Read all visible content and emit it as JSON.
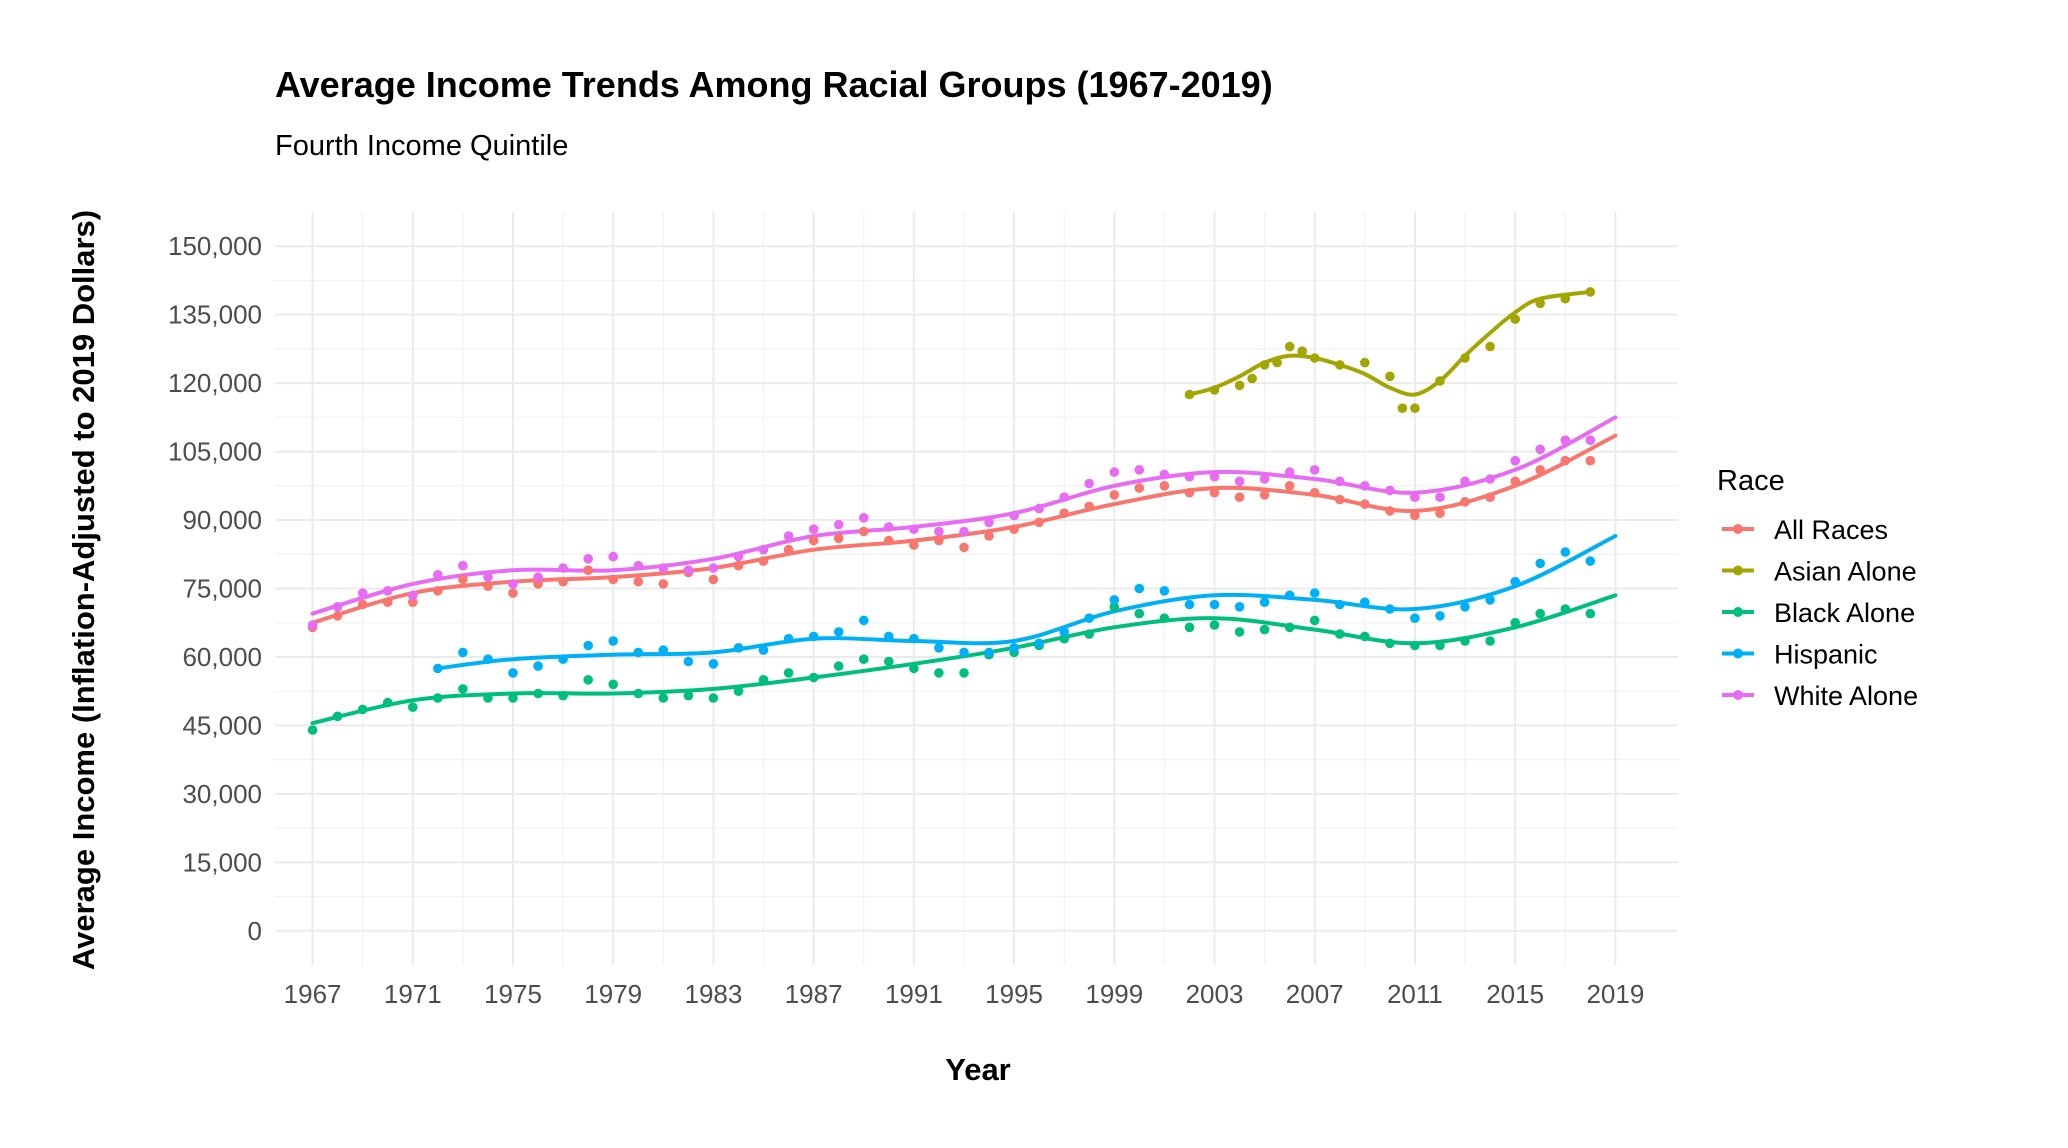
{
  "chart_data": {
    "type": "scatter",
    "title": "Average Income Trends Among Racial Groups (1967-2019)",
    "subtitle": "Fourth Income Quintile",
    "xlabel": "Year",
    "ylabel": "Average Income (Inflation-Adjusted to 2019 Dollars)",
    "xlim": [
      1965.5,
      2021.5
    ],
    "ylim": [
      -7500,
      157500
    ],
    "x_ticks": [
      1967,
      1971,
      1975,
      1979,
      1983,
      1987,
      1991,
      1995,
      1999,
      2003,
      2007,
      2011,
      2015,
      2019
    ],
    "x_tick_labels": [
      "1967",
      "1971",
      "1975",
      "1979",
      "1983",
      "1987",
      "1991",
      "1995",
      "1999",
      "2003",
      "2007",
      "2011",
      "2015",
      "2019"
    ],
    "y_ticks": [
      0,
      15000,
      30000,
      45000,
      60000,
      75000,
      90000,
      105000,
      120000,
      135000,
      150000
    ],
    "y_tick_labels": [
      "0",
      "15,000",
      "30,000",
      "45,000",
      "60,000",
      "75,000",
      "90,000",
      "105,000",
      "120,000",
      "135,000",
      "150,000"
    ],
    "grid": true,
    "smooth_lines": true,
    "legend": {
      "title": "Race",
      "position": "right"
    },
    "series": [
      {
        "name": "All Races",
        "color": "#F8766D",
        "points": [
          [
            1967,
            66500
          ],
          [
            1968,
            69000
          ],
          [
            1969,
            71500
          ],
          [
            1970,
            72000
          ],
          [
            1971,
            72000
          ],
          [
            1972,
            74500
          ],
          [
            1973,
            77000
          ],
          [
            1974,
            75500
          ],
          [
            1975,
            74000
          ],
          [
            1976,
            76000
          ],
          [
            1977,
            76500
          ],
          [
            1978,
            79000
          ],
          [
            1979,
            77000
          ],
          [
            1980,
            76500
          ],
          [
            1981,
            76000
          ],
          [
            1982,
            78500
          ],
          [
            1983,
            77000
          ],
          [
            1984,
            80000
          ],
          [
            1985,
            81000
          ],
          [
            1986,
            83500
          ],
          [
            1987,
            85500
          ],
          [
            1988,
            86000
          ],
          [
            1989,
            87500
          ],
          [
            1990,
            85500
          ],
          [
            1991,
            84500
          ],
          [
            1992,
            85500
          ],
          [
            1993,
            84000
          ],
          [
            1994,
            86500
          ],
          [
            1995,
            88000
          ],
          [
            1996,
            89500
          ],
          [
            1997,
            91500
          ],
          [
            1998,
            93000
          ],
          [
            1999,
            95500
          ],
          [
            2000,
            97000
          ],
          [
            2001,
            97500
          ],
          [
            2002,
            96000
          ],
          [
            2003,
            96000
          ],
          [
            2004,
            95000
          ],
          [
            2005,
            95500
          ],
          [
            2006,
            97500
          ],
          [
            2007,
            96000
          ],
          [
            2008,
            94500
          ],
          [
            2009,
            93500
          ],
          [
            2010,
            92000
          ],
          [
            2011,
            91000
          ],
          [
            2012,
            91500
          ],
          [
            2013,
            94000
          ],
          [
            2014,
            95000
          ],
          [
            2015,
            98500
          ],
          [
            2016,
            101000
          ],
          [
            2017,
            103000
          ],
          [
            2018,
            103000
          ]
        ],
        "curve": [
          [
            1967,
            67500
          ],
          [
            1971,
            74000
          ],
          [
            1975,
            76500
          ],
          [
            1979,
            77500
          ],
          [
            1983,
            79500
          ],
          [
            1987,
            83500
          ],
          [
            1991,
            85500
          ],
          [
            1995,
            88500
          ],
          [
            1999,
            93500
          ],
          [
            2003,
            97000
          ],
          [
            2007,
            95500
          ],
          [
            2011,
            92000
          ],
          [
            2015,
            97500
          ],
          [
            2019,
            108500
          ]
        ]
      },
      {
        "name": "Asian Alone",
        "color": "#A3A500",
        "points": [
          [
            2002,
            117500
          ],
          [
            2003,
            118500
          ],
          [
            2004,
            119500
          ],
          [
            2004.5,
            121000
          ],
          [
            2005,
            124000
          ],
          [
            2005.5,
            124500
          ],
          [
            2006,
            128000
          ],
          [
            2006.5,
            127000
          ],
          [
            2007,
            125500
          ],
          [
            2008,
            124000
          ],
          [
            2009,
            124500
          ],
          [
            2010,
            121500
          ],
          [
            2010.5,
            114500
          ],
          [
            2011,
            114500
          ],
          [
            2012,
            120500
          ],
          [
            2013,
            125500
          ],
          [
            2014,
            128000
          ],
          [
            2015,
            134000
          ],
          [
            2016,
            137500
          ],
          [
            2017,
            138500
          ],
          [
            2018,
            140000
          ]
        ],
        "curve": [
          [
            2002,
            117500
          ],
          [
            2003,
            119000
          ],
          [
            2004,
            121500
          ],
          [
            2005,
            124500
          ],
          [
            2006,
            126000
          ],
          [
            2007,
            125500
          ],
          [
            2008,
            124000
          ],
          [
            2009,
            122000
          ],
          [
            2010,
            119000
          ],
          [
            2011,
            117500
          ],
          [
            2012,
            120500
          ],
          [
            2013,
            126000
          ],
          [
            2014,
            131000
          ],
          [
            2015,
            135500
          ],
          [
            2016,
            138500
          ],
          [
            2018,
            140000
          ]
        ]
      },
      {
        "name": "Black Alone",
        "color": "#00BF7D",
        "points": [
          [
            1967,
            44000
          ],
          [
            1968,
            47000
          ],
          [
            1969,
            48500
          ],
          [
            1970,
            50000
          ],
          [
            1971,
            49000
          ],
          [
            1972,
            51000
          ],
          [
            1973,
            53000
          ],
          [
            1974,
            51000
          ],
          [
            1975,
            51000
          ],
          [
            1976,
            52000
          ],
          [
            1977,
            51500
          ],
          [
            1978,
            55000
          ],
          [
            1979,
            54000
          ],
          [
            1980,
            52000
          ],
          [
            1981,
            51000
          ],
          [
            1982,
            51500
          ],
          [
            1983,
            51000
          ],
          [
            1984,
            52500
          ],
          [
            1985,
            55000
          ],
          [
            1986,
            56500
          ],
          [
            1987,
            55500
          ],
          [
            1988,
            58000
          ],
          [
            1989,
            59500
          ],
          [
            1990,
            59000
          ],
          [
            1991,
            57500
          ],
          [
            1992,
            56500
          ],
          [
            1993,
            56500
          ],
          [
            1994,
            60500
          ],
          [
            1995,
            61000
          ],
          [
            1996,
            62500
          ],
          [
            1997,
            64000
          ],
          [
            1998,
            65000
          ],
          [
            1999,
            71000
          ],
          [
            2000,
            69500
          ],
          [
            2001,
            68500
          ],
          [
            2002,
            66500
          ],
          [
            2003,
            67000
          ],
          [
            2004,
            65500
          ],
          [
            2005,
            66000
          ],
          [
            2006,
            66500
          ],
          [
            2007,
            68000
          ],
          [
            2008,
            65000
          ],
          [
            2009,
            64500
          ],
          [
            2010,
            63000
          ],
          [
            2011,
            62500
          ],
          [
            2012,
            62500
          ],
          [
            2013,
            63500
          ],
          [
            2014,
            63500
          ],
          [
            2015,
            67500
          ],
          [
            2016,
            69500
          ],
          [
            2017,
            70500
          ],
          [
            2018,
            69500
          ]
        ],
        "curve": [
          [
            1967,
            45500
          ],
          [
            1971,
            50500
          ],
          [
            1975,
            52000
          ],
          [
            1979,
            52000
          ],
          [
            1983,
            53000
          ],
          [
            1987,
            55500
          ],
          [
            1991,
            58500
          ],
          [
            1995,
            62000
          ],
          [
            1999,
            66500
          ],
          [
            2003,
            68500
          ],
          [
            2007,
            66000
          ],
          [
            2011,
            63000
          ],
          [
            2015,
            66500
          ],
          [
            2019,
            73500
          ]
        ]
      },
      {
        "name": "Hispanic",
        "color": "#00B0F6",
        "points": [
          [
            1972,
            57500
          ],
          [
            1973,
            61000
          ],
          [
            1974,
            59500
          ],
          [
            1975,
            56500
          ],
          [
            1976,
            58000
          ],
          [
            1977,
            59500
          ],
          [
            1978,
            62500
          ],
          [
            1979,
            63500
          ],
          [
            1980,
            61000
          ],
          [
            1981,
            61500
          ],
          [
            1982,
            59000
          ],
          [
            1983,
            58500
          ],
          [
            1984,
            62000
          ],
          [
            1985,
            61500
          ],
          [
            1986,
            64000
          ],
          [
            1987,
            64500
          ],
          [
            1988,
            65500
          ],
          [
            1989,
            68000
          ],
          [
            1990,
            64500
          ],
          [
            1991,
            64000
          ],
          [
            1992,
            62000
          ],
          [
            1993,
            61000
          ],
          [
            1994,
            61000
          ],
          [
            1995,
            62000
          ],
          [
            1996,
            63000
          ],
          [
            1997,
            65500
          ],
          [
            1998,
            68500
          ],
          [
            1999,
            72500
          ],
          [
            2000,
            75000
          ],
          [
            2001,
            74500
          ],
          [
            2002,
            71500
          ],
          [
            2003,
            71500
          ],
          [
            2004,
            71000
          ],
          [
            2005,
            72000
          ],
          [
            2006,
            73500
          ],
          [
            2007,
            74000
          ],
          [
            2008,
            71500
          ],
          [
            2009,
            72000
          ],
          [
            2010,
            70500
          ],
          [
            2011,
            68500
          ],
          [
            2012,
            69000
          ],
          [
            2013,
            71000
          ],
          [
            2014,
            72500
          ],
          [
            2015,
            76500
          ],
          [
            2016,
            80500
          ],
          [
            2017,
            83000
          ],
          [
            2018,
            81000
          ]
        ],
        "curve": [
          [
            1972,
            57500
          ],
          [
            1975,
            59500
          ],
          [
            1979,
            60500
          ],
          [
            1983,
            61000
          ],
          [
            1987,
            64000
          ],
          [
            1991,
            63500
          ],
          [
            1995,
            63500
          ],
          [
            1999,
            70000
          ],
          [
            2003,
            73500
          ],
          [
            2007,
            72500
          ],
          [
            2011,
            70500
          ],
          [
            2015,
            75500
          ],
          [
            2019,
            86500
          ]
        ]
      },
      {
        "name": "White Alone",
        "color": "#E76BF3",
        "points": [
          [
            1967,
            67000
          ],
          [
            1968,
            71000
          ],
          [
            1969,
            74000
          ],
          [
            1970,
            74500
          ],
          [
            1971,
            73500
          ],
          [
            1972,
            78000
          ],
          [
            1973,
            80000
          ],
          [
            1974,
            77500
          ],
          [
            1975,
            76000
          ],
          [
            1976,
            77500
          ],
          [
            1977,
            79500
          ],
          [
            1978,
            81500
          ],
          [
            1979,
            82000
          ],
          [
            1980,
            80000
          ],
          [
            1981,
            79500
          ],
          [
            1982,
            79000
          ],
          [
            1983,
            79500
          ],
          [
            1984,
            82000
          ],
          [
            1985,
            83500
          ],
          [
            1986,
            86500
          ],
          [
            1987,
            88000
          ],
          [
            1988,
            89000
          ],
          [
            1989,
            90500
          ],
          [
            1990,
            88500
          ],
          [
            1991,
            88000
          ],
          [
            1992,
            87500
          ],
          [
            1993,
            87500
          ],
          [
            1994,
            89500
          ],
          [
            1995,
            91000
          ],
          [
            1996,
            92500
          ],
          [
            1997,
            95000
          ],
          [
            1998,
            98000
          ],
          [
            1999,
            100500
          ],
          [
            2000,
            101000
          ],
          [
            2001,
            100000
          ],
          [
            2002,
            99500
          ],
          [
            2003,
            99500
          ],
          [
            2004,
            98500
          ],
          [
            2005,
            99000
          ],
          [
            2006,
            100500
          ],
          [
            2007,
            101000
          ],
          [
            2008,
            98500
          ],
          [
            2009,
            97500
          ],
          [
            2010,
            96500
          ],
          [
            2011,
            95000
          ],
          [
            2012,
            95000
          ],
          [
            2013,
            98500
          ],
          [
            2014,
            99000
          ],
          [
            2015,
            103000
          ],
          [
            2016,
            105500
          ],
          [
            2017,
            107500
          ],
          [
            2018,
            107500
          ]
        ],
        "curve": [
          [
            1967,
            69500
          ],
          [
            1971,
            76000
          ],
          [
            1975,
            79000
          ],
          [
            1979,
            79000
          ],
          [
            1983,
            81500
          ],
          [
            1987,
            86500
          ],
          [
            1991,
            88500
          ],
          [
            1995,
            91500
          ],
          [
            1999,
            97500
          ],
          [
            2003,
            100500
          ],
          [
            2007,
            99000
          ],
          [
            2011,
            96000
          ],
          [
            2015,
            101000
          ],
          [
            2019,
            112500
          ]
        ]
      }
    ]
  }
}
